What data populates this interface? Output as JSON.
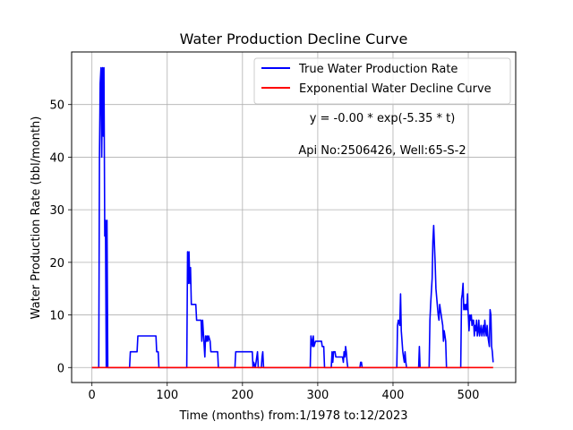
{
  "chart_data": {
    "type": "line",
    "title": "Water Production Decline Curve",
    "xlabel": "Time (months) from:1/1978 to:12/2023",
    "ylabel": "Water Production Rate (bbl/month)",
    "xlim": [
      -27,
      563
    ],
    "ylim": [
      -2.85,
      60
    ],
    "xticks": [
      0,
      100,
      200,
      300,
      400,
      500
    ],
    "yticks": [
      0,
      10,
      20,
      30,
      40,
      50
    ],
    "grid": true,
    "legend_position": "top-right",
    "annotations": {
      "equation": "y = -0.00 * exp(-5.35 * t)",
      "well_info": "Api No:2506426, Well:65-S-2"
    },
    "series": [
      {
        "name": "True Water Production Rate",
        "color": "#0000ff",
        "points": [
          [
            0,
            0
          ],
          [
            9,
            0
          ],
          [
            10,
            40
          ],
          [
            11,
            54
          ],
          [
            12,
            57
          ],
          [
            13,
            40
          ],
          [
            14,
            57
          ],
          [
            15,
            44
          ],
          [
            16,
            57
          ],
          [
            17,
            25
          ],
          [
            18,
            28
          ],
          [
            19,
            0
          ],
          [
            20,
            28
          ],
          [
            21,
            0
          ],
          [
            50,
            0
          ],
          [
            51,
            3
          ],
          [
            60,
            3
          ],
          [
            61,
            6
          ],
          [
            85,
            6
          ],
          [
            86,
            3
          ],
          [
            88,
            3
          ],
          [
            89,
            0
          ],
          [
            126,
            0
          ],
          [
            127,
            22
          ],
          [
            128,
            16
          ],
          [
            129,
            22
          ],
          [
            130,
            16
          ],
          [
            131,
            19
          ],
          [
            132,
            12
          ],
          [
            138,
            12
          ],
          [
            139,
            9
          ],
          [
            145,
            9
          ],
          [
            146,
            5
          ],
          [
            147,
            9
          ],
          [
            150,
            2
          ],
          [
            151,
            6
          ],
          [
            152,
            5
          ],
          [
            153,
            6
          ],
          [
            154,
            5
          ],
          [
            155,
            6
          ],
          [
            157,
            5
          ],
          [
            158,
            3
          ],
          [
            167,
            3
          ],
          [
            168,
            0
          ],
          [
            190,
            0
          ],
          [
            191,
            3
          ],
          [
            213,
            3
          ],
          [
            214,
            0
          ],
          [
            215,
            1
          ],
          [
            217,
            0
          ],
          [
            218,
            1
          ],
          [
            220,
            3
          ],
          [
            221,
            0
          ],
          [
            225,
            0
          ],
          [
            226,
            2
          ],
          [
            227,
            3
          ],
          [
            228,
            0
          ],
          [
            290,
            0
          ],
          [
            291,
            6
          ],
          [
            292,
            5
          ],
          [
            293,
            4
          ],
          [
            294,
            6
          ],
          [
            295,
            4
          ],
          [
            297,
            5
          ],
          [
            305,
            5
          ],
          [
            306,
            4
          ],
          [
            308,
            4
          ],
          [
            309,
            0
          ],
          [
            318,
            0
          ],
          [
            319,
            3
          ],
          [
            320,
            1
          ],
          [
            321,
            3
          ],
          [
            323,
            3
          ],
          [
            324,
            2
          ],
          [
            333,
            2
          ],
          [
            334,
            1
          ],
          [
            335,
            3
          ],
          [
            336,
            2
          ],
          [
            337,
            4
          ],
          [
            338,
            3
          ],
          [
            339,
            1
          ],
          [
            340,
            0
          ],
          [
            356,
            0
          ],
          [
            357,
            1
          ],
          [
            358,
            1
          ],
          [
            359,
            0
          ],
          [
            405,
            0
          ],
          [
            406,
            8
          ],
          [
            407,
            9
          ],
          [
            409,
            8
          ],
          [
            410,
            14
          ],
          [
            411,
            7
          ],
          [
            413,
            3
          ],
          [
            414,
            2
          ],
          [
            415,
            1
          ],
          [
            416,
            3
          ],
          [
            417,
            1
          ],
          [
            418,
            0
          ],
          [
            434,
            0
          ],
          [
            435,
            4
          ],
          [
            436,
            0
          ],
          [
            448,
            0
          ],
          [
            449,
            9
          ],
          [
            450,
            12
          ],
          [
            452,
            17
          ],
          [
            453,
            24
          ],
          [
            454,
            27
          ],
          [
            456,
            20
          ],
          [
            457,
            15
          ],
          [
            460,
            10
          ],
          [
            461,
            9
          ],
          [
            462,
            12
          ],
          [
            463,
            11
          ],
          [
            464,
            10
          ],
          [
            465,
            9
          ],
          [
            466,
            8
          ],
          [
            467,
            5
          ],
          [
            468,
            7
          ],
          [
            469,
            6
          ],
          [
            470,
            5
          ],
          [
            471,
            0
          ],
          [
            490,
            0
          ],
          [
            491,
            13
          ],
          [
            492,
            14
          ],
          [
            493,
            16
          ],
          [
            494,
            11
          ],
          [
            495,
            12
          ],
          [
            496,
            11
          ],
          [
            497,
            12
          ],
          [
            498,
            11
          ],
          [
            499,
            14
          ],
          [
            500,
            10
          ],
          [
            501,
            7
          ],
          [
            502,
            10
          ],
          [
            503,
            9
          ],
          [
            504,
            10
          ],
          [
            505,
            8
          ],
          [
            506,
            9
          ],
          [
            507,
            9
          ],
          [
            508,
            6
          ],
          [
            509,
            8
          ],
          [
            510,
            7
          ],
          [
            511,
            9
          ],
          [
            512,
            6
          ],
          [
            513,
            7
          ],
          [
            514,
            9
          ],
          [
            515,
            6
          ],
          [
            516,
            7
          ],
          [
            517,
            8
          ],
          [
            518,
            6
          ],
          [
            519,
            7
          ],
          [
            520,
            8
          ],
          [
            521,
            6
          ],
          [
            522,
            9
          ],
          [
            523,
            7
          ],
          [
            524,
            6
          ],
          [
            525,
            8
          ],
          [
            526,
            6
          ],
          [
            527,
            5
          ],
          [
            528,
            4
          ],
          [
            529,
            11
          ],
          [
            530,
            10
          ],
          [
            531,
            4
          ],
          [
            532,
            3
          ],
          [
            533,
            1
          ]
        ]
      },
      {
        "name": "Exponential Water Decline Curve",
        "color": "#ff0000",
        "points": [
          [
            0,
            0
          ],
          [
            533,
            0
          ]
        ]
      }
    ]
  }
}
